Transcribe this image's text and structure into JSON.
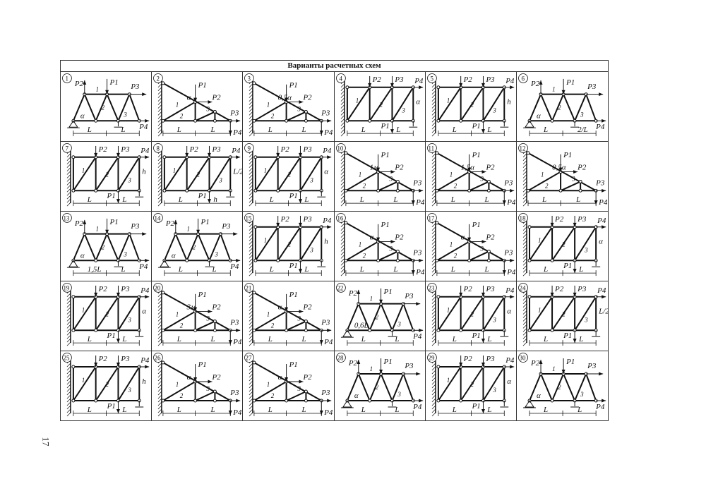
{
  "title": "Варианты расчетных схем",
  "page_number": "17",
  "variants": [
    {
      "number": "1",
      "labels": [
        "P1",
        "P2",
        "P3",
        "P4",
        "1",
        "2",
        "3",
        "α",
        "L",
        "L"
      ]
    },
    {
      "number": "2",
      "labels": [
        "P1",
        "P2",
        "P3",
        "P4",
        "1",
        "2",
        "3",
        "α",
        "L",
        "L"
      ]
    },
    {
      "number": "3",
      "labels": [
        "P1",
        "P2",
        "P3",
        "P4",
        "1",
        "2",
        "3",
        "0,5α",
        "L",
        "L"
      ]
    },
    {
      "number": "4",
      "labels": [
        "P1",
        "P2",
        "P3",
        "P4",
        "1",
        "2",
        "3",
        "α",
        "L",
        "L"
      ]
    },
    {
      "number": "5",
      "labels": [
        "P1",
        "P2",
        "P3",
        "P4",
        "1",
        "2",
        "3",
        "h",
        "L",
        "L"
      ]
    },
    {
      "number": "6",
      "labels": [
        "P1",
        "P2",
        "P3",
        "P4",
        "1",
        "2",
        "3",
        "α",
        "L",
        "2/L"
      ]
    },
    {
      "number": "7",
      "labels": [
        "P1",
        "P2",
        "P3",
        "P4",
        "1",
        "2",
        "3",
        "h",
        "L",
        "L"
      ]
    },
    {
      "number": "8",
      "labels": [
        "P1",
        "P2",
        "P3",
        "P4",
        "1",
        "2",
        "3",
        "L/2",
        "L",
        "h"
      ]
    },
    {
      "number": "9",
      "labels": [
        "P1",
        "P2",
        "P3",
        "P4",
        "1",
        "2",
        "3",
        "α",
        "L",
        "L"
      ]
    },
    {
      "number": "10",
      "labels": [
        "P1",
        "P2",
        "P3",
        "P4",
        "1",
        "2",
        "3",
        "1м",
        "L",
        "L"
      ]
    },
    {
      "number": "11",
      "labels": [
        "P1",
        "P2",
        "P3",
        "P4",
        "1",
        "2",
        "3",
        "1,5α",
        "L",
        "L"
      ]
    },
    {
      "number": "12",
      "labels": [
        "P1",
        "P2",
        "P3",
        "P4",
        "1",
        "2",
        "3",
        "0,5α",
        "L",
        "L"
      ]
    },
    {
      "number": "13",
      "labels": [
        "P1",
        "P2",
        "P3",
        "P4",
        "1",
        "2",
        "3",
        "α",
        "1,5L",
        "L"
      ]
    },
    {
      "number": "14",
      "labels": [
        "P1",
        "P2",
        "P3",
        "P4",
        "1",
        "2",
        "3",
        "α",
        "L",
        "L"
      ]
    },
    {
      "number": "15",
      "labels": [
        "P1",
        "P2",
        "P3",
        "P4",
        "1",
        "2",
        "3",
        "h",
        "L",
        "L"
      ]
    },
    {
      "number": "16",
      "labels": [
        "P1",
        "P2",
        "P3",
        "P4",
        "1",
        "2",
        "3",
        "α",
        "L",
        "L"
      ]
    },
    {
      "number": "17",
      "labels": [
        "P1",
        "P2",
        "P3",
        "P4",
        "1",
        "2",
        "3",
        "α",
        "L",
        "L"
      ]
    },
    {
      "number": "18",
      "labels": [
        "P1",
        "P2",
        "P3",
        "P4",
        "1",
        "2",
        "3",
        "α",
        "L",
        "L"
      ]
    },
    {
      "number": "19",
      "labels": [
        "P1",
        "P2",
        "P3",
        "P4",
        "1",
        "2",
        "3",
        "α",
        "L",
        "L"
      ]
    },
    {
      "number": "20",
      "labels": [
        "P1",
        "P2",
        "P3",
        "P4",
        "1",
        "2",
        "3",
        "3м",
        "L",
        "L"
      ]
    },
    {
      "number": "21",
      "labels": [
        "P1",
        "P2",
        "P3",
        "P4",
        "1",
        "2",
        "3",
        "α",
        "L",
        "L"
      ]
    },
    {
      "number": "22",
      "labels": [
        "P1",
        "P2",
        "P3",
        "P4",
        "1",
        "2",
        "3",
        "0,6L",
        "L",
        "L"
      ]
    },
    {
      "number": "23",
      "labels": [
        "P1",
        "P2",
        "P3",
        "P4",
        "1",
        "2",
        "3",
        "α",
        "L",
        "L"
      ]
    },
    {
      "number": "24",
      "labels": [
        "P1",
        "P2",
        "P3",
        "P4",
        "1",
        "2",
        "3",
        "L/2",
        "L",
        "L"
      ]
    },
    {
      "number": "25",
      "labels": [
        "P1",
        "P2",
        "P3",
        "P4",
        "1",
        "2",
        "3",
        "h",
        "L",
        "L"
      ]
    },
    {
      "number": "26",
      "labels": [
        "P1",
        "P2",
        "P3",
        "P4",
        "1",
        "2",
        "3",
        "α",
        "L",
        "L"
      ]
    },
    {
      "number": "27",
      "labels": [
        "P1",
        "P2",
        "P3",
        "P4",
        "1",
        "2",
        "3",
        "α",
        "L",
        "L"
      ]
    },
    {
      "number": "28",
      "labels": [
        "P1",
        "P2",
        "P3",
        "P4",
        "1",
        "2",
        "3",
        "α",
        "L",
        "L"
      ]
    },
    {
      "number": "29",
      "labels": [
        "P1",
        "P2",
        "P3",
        "P4",
        "1",
        "2",
        "3",
        "α",
        "L",
        "L"
      ]
    },
    {
      "number": "30",
      "labels": [
        "P1",
        "P2",
        "P3",
        "P4",
        "1",
        "2",
        "3",
        "α",
        "L",
        "L"
      ]
    }
  ]
}
